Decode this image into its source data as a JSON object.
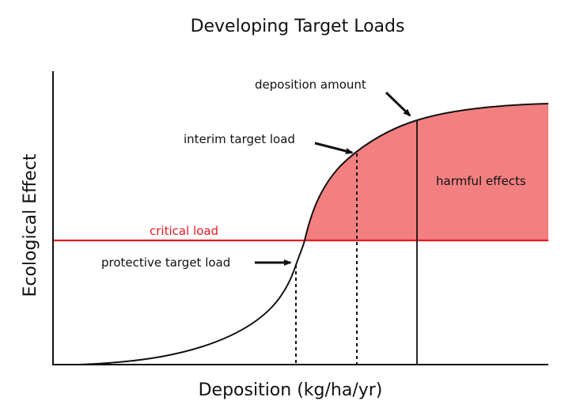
{
  "title": "Developing Target Loads",
  "axes": {
    "x_label": "Deposition (kg/ha/yr)",
    "y_label": "Ecological Effect"
  },
  "labels": {
    "deposition_amount": "deposition amount",
    "interim_target_load": "interim target load",
    "protective_target_load": "protective target load",
    "critical_load": "critical load",
    "harmful_effects": "harmful effects"
  },
  "colors": {
    "critical_line": "#e31b23",
    "harmful_fill": "#f28080",
    "curve": "#111111",
    "axis": "#111111"
  }
}
